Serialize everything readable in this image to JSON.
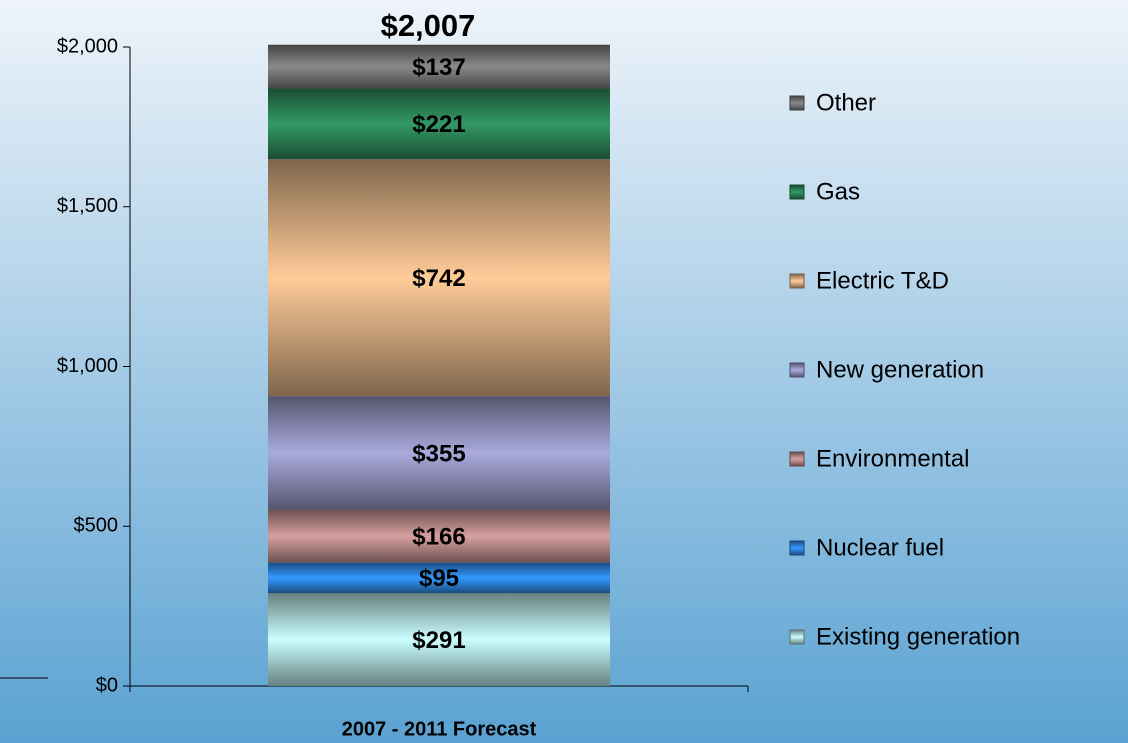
{
  "chart_data": {
    "type": "stacked-bar",
    "categories": [
      "2007 - 2011 Forecast"
    ],
    "series": [
      {
        "name": "Existing generation",
        "color": "#ccffff",
        "values": [
          291
        ],
        "value_labels": [
          "$291"
        ]
      },
      {
        "name": "Nuclear fuel",
        "color": "#3399ff",
        "values": [
          95
        ],
        "value_labels": [
          "$95"
        ]
      },
      {
        "name": "Environmental",
        "color": "#d8a0a0",
        "values": [
          166
        ],
        "value_labels": [
          "$166"
        ]
      },
      {
        "name": "New generation",
        "color": "#aaaadd",
        "values": [
          355
        ],
        "value_labels": [
          "$355"
        ]
      },
      {
        "name": "Electric T&D",
        "color": "#ffcc99",
        "values": [
          742
        ],
        "value_labels": [
          "$742"
        ]
      },
      {
        "name": "Gas",
        "color": "#339966",
        "values": [
          221
        ],
        "value_labels": [
          "$221"
        ]
      },
      {
        "name": "Other",
        "color": "#8a8a8a",
        "values": [
          137
        ],
        "value_labels": [
          "$137"
        ]
      }
    ],
    "total": {
      "value": 2007,
      "label": "$2,007"
    },
    "ylim": [
      0,
      2000
    ],
    "yticks": [
      {
        "value": 0,
        "label": "$0"
      },
      {
        "value": 500,
        "label": "$500"
      },
      {
        "value": 1000,
        "label": "$1,000"
      },
      {
        "value": 1500,
        "label": "$1,500"
      },
      {
        "value": 2000,
        "label": "$2,000"
      }
    ],
    "legend": "right"
  }
}
